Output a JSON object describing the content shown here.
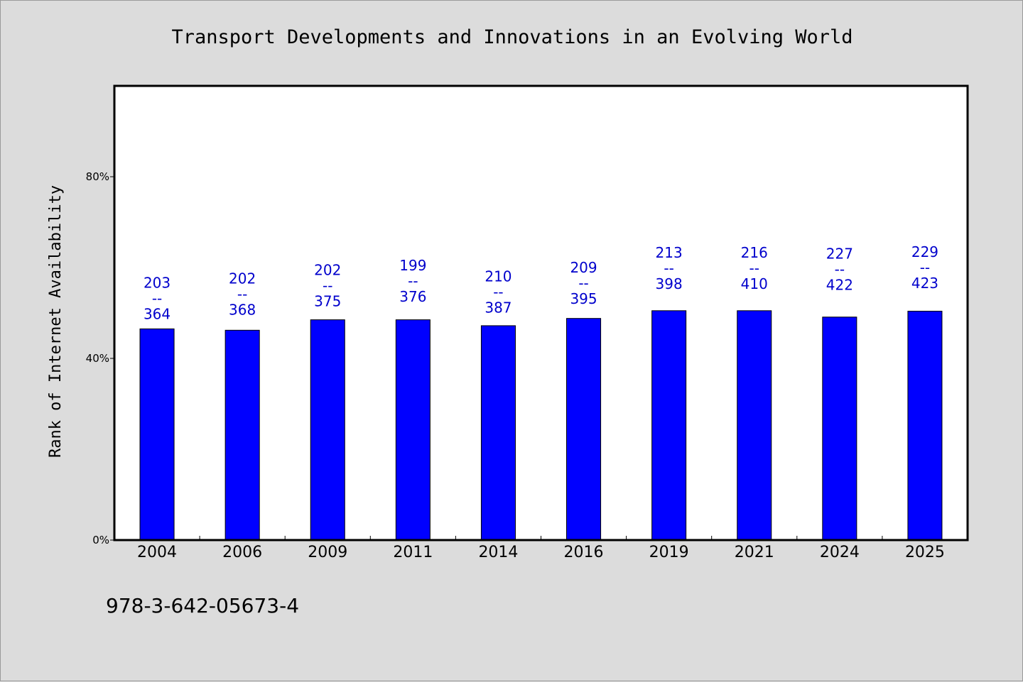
{
  "chart_data": {
    "type": "bar",
    "title": "Transport Developments and Innovations in an Evolving World",
    "xlabel": "",
    "ylabel": "Rank of Internet Availability",
    "categories": [
      "2004",
      "2006",
      "2009",
      "2011",
      "2014",
      "2016",
      "2019",
      "2021",
      "2024",
      "2025"
    ],
    "values": [
      46.5,
      46.2,
      48.5,
      48.5,
      47.2,
      48.8,
      50.5,
      50.5,
      49.1,
      50.4
    ],
    "value_unit": "%",
    "ylim": [
      0,
      100
    ],
    "yticks": [
      {
        "value": 0,
        "label": "0%"
      },
      {
        "value": 40,
        "label": "40%"
      },
      {
        "value": 80,
        "label": "80%"
      }
    ],
    "data_labels": [
      {
        "top": "203",
        "sep": "--",
        "bottom": "364"
      },
      {
        "top": "202",
        "sep": "--",
        "bottom": "368"
      },
      {
        "top": "202",
        "sep": "--",
        "bottom": "375"
      },
      {
        "top": "199",
        "sep": "--",
        "bottom": "376"
      },
      {
        "top": "210",
        "sep": "--",
        "bottom": "387"
      },
      {
        "top": "209",
        "sep": "--",
        "bottom": "395"
      },
      {
        "top": "213",
        "sep": "--",
        "bottom": "398"
      },
      {
        "top": "216",
        "sep": "--",
        "bottom": "410"
      },
      {
        "top": "227",
        "sep": "--",
        "bottom": "422"
      },
      {
        "top": "229",
        "sep": "--",
        "bottom": "423"
      }
    ],
    "label_offsets": [
      2.2,
      3.4,
      3.0,
      4.0,
      2.9,
      3.2,
      4.8,
      4.8,
      6.0,
      5.1
    ],
    "grid": false,
    "legend": "none",
    "colors": {
      "bar": "#0000ff",
      "label": "#0000cc",
      "background": "#dcdcdc",
      "plot_background": "#ffffff"
    }
  },
  "footer": {
    "note": "978-3-642-05673-4"
  }
}
